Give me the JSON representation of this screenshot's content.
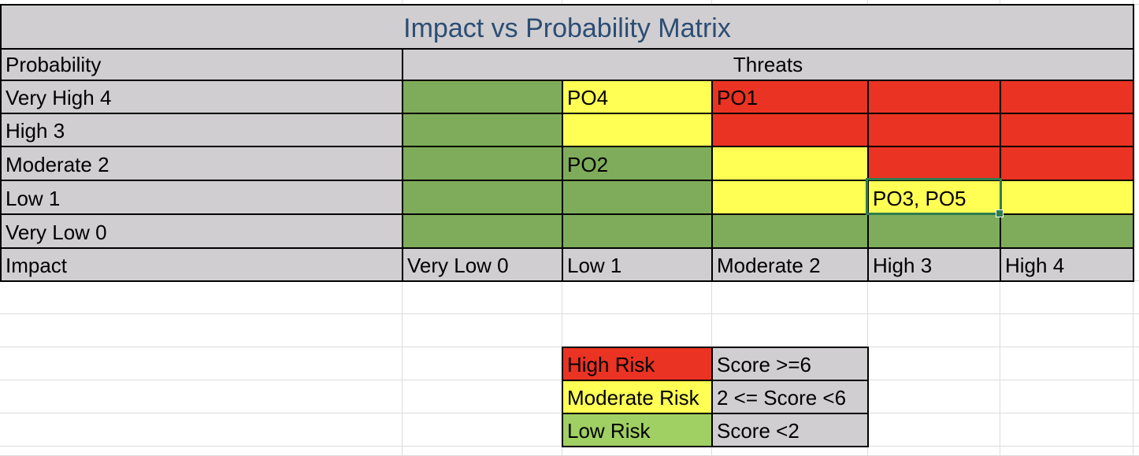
{
  "title": "Impact vs Probability Matrix",
  "probability_label": "Probability",
  "threats_label": "Threats",
  "impact_label": "Impact",
  "colors": {
    "header_gray": "#d0ced0",
    "green": "#7fac5a",
    "yellow": "#ffff54",
    "red": "#ea3323",
    "light_green": "#a0cf63",
    "title_blue": "#2c4d75",
    "selection": "#2e7d4f"
  },
  "rows": [
    {
      "label": "Very High 4",
      "cells": [
        {
          "color": "green",
          "text": ""
        },
        {
          "color": "yellow",
          "text": "PO4"
        },
        {
          "color": "red",
          "text": "PO1"
        },
        {
          "color": "red",
          "text": ""
        },
        {
          "color": "red",
          "text": ""
        }
      ]
    },
    {
      "label": "High 3",
      "cells": [
        {
          "color": "green",
          "text": ""
        },
        {
          "color": "yellow",
          "text": ""
        },
        {
          "color": "red",
          "text": ""
        },
        {
          "color": "red",
          "text": ""
        },
        {
          "color": "red",
          "text": ""
        }
      ]
    },
    {
      "label": "Moderate 2",
      "cells": [
        {
          "color": "green",
          "text": ""
        },
        {
          "color": "green",
          "text": "PO2"
        },
        {
          "color": "yellow",
          "text": ""
        },
        {
          "color": "red",
          "text": ""
        },
        {
          "color": "red",
          "text": ""
        }
      ]
    },
    {
      "label": "Low 1",
      "cells": [
        {
          "color": "green",
          "text": ""
        },
        {
          "color": "green",
          "text": ""
        },
        {
          "color": "yellow",
          "text": ""
        },
        {
          "color": "yellow",
          "text": "PO3, PO5"
        },
        {
          "color": "yellow",
          "text": ""
        }
      ]
    },
    {
      "label": "Very Low 0",
      "cells": [
        {
          "color": "green",
          "text": ""
        },
        {
          "color": "green",
          "text": ""
        },
        {
          "color": "green",
          "text": ""
        },
        {
          "color": "green",
          "text": ""
        },
        {
          "color": "green",
          "text": ""
        }
      ]
    }
  ],
  "impact_columns": [
    "Very Low 0",
    "Low 1",
    "Moderate 2",
    "High 3",
    "High 4"
  ],
  "legend": [
    {
      "label": "High Risk",
      "color": "red",
      "rule": "Score >=6"
    },
    {
      "label": "Moderate Risk",
      "color": "yellow",
      "rule": "2 <= Score <6"
    },
    {
      "label": "Low Risk",
      "color": "light_green",
      "rule": "Score <2"
    }
  ]
}
